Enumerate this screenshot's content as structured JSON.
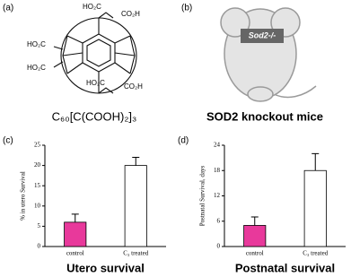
{
  "panels": [
    {
      "label": "(a)",
      "caption": "C₆₀[C(COOH)₂]₃",
      "groups": [
        "HO₂C",
        "CO₂H",
        "HO₂C",
        "HO₂C",
        "HO₂C",
        "CO₂H"
      ]
    },
    {
      "label": "(b)",
      "caption": "SOD2 knockout mice",
      "tag": "Sod2-/-"
    }
  ],
  "chart_data": [
    {
      "type": "bar",
      "panel_label": "(c)",
      "title": "Utero survival",
      "ylabel": "% in utero Survival",
      "categories": [
        "control",
        "C₃ treated"
      ],
      "values": [
        6,
        20
      ],
      "errors": [
        2,
        2
      ],
      "colors": [
        "#e8399b",
        "#ffffff"
      ],
      "ylim": [
        0,
        25
      ],
      "yticks": [
        0,
        5,
        10,
        15,
        20,
        25
      ]
    },
    {
      "type": "bar",
      "panel_label": "(d)",
      "title": "Postnatal survival",
      "ylabel": "Postnatal Survival, days",
      "categories": [
        "control",
        "C₃ treated"
      ],
      "values": [
        5,
        18
      ],
      "errors": [
        2,
        4
      ],
      "colors": [
        "#e8399b",
        "#ffffff"
      ],
      "ylim": [
        0,
        24
      ],
      "yticks": [
        0,
        6,
        12,
        18,
        24
      ]
    }
  ]
}
